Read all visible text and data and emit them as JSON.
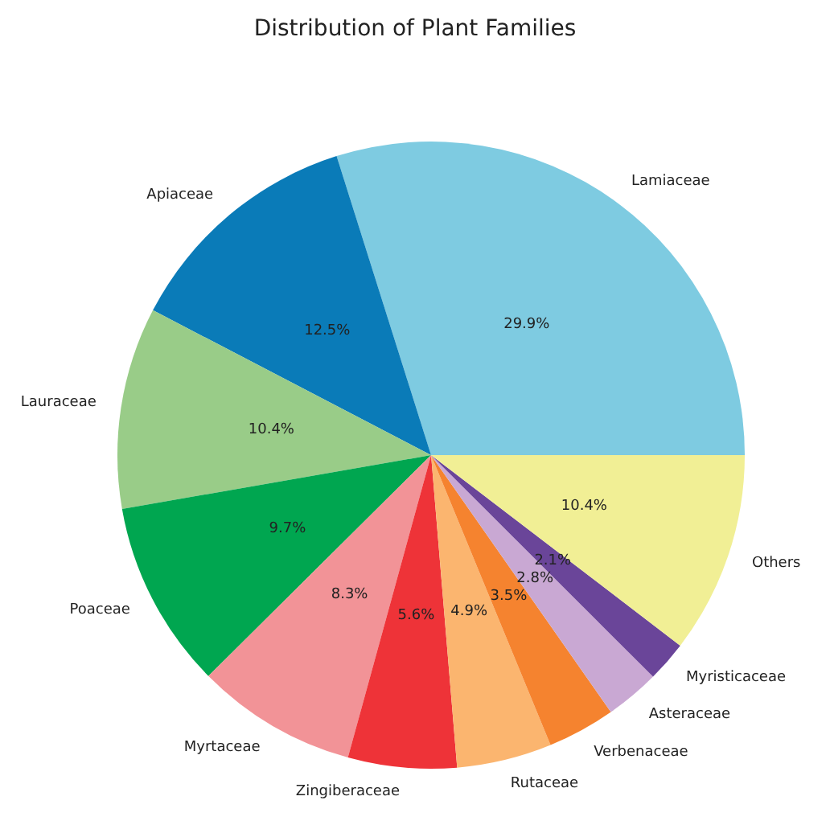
{
  "chart_data": {
    "type": "pie",
    "title": "Distribution of Plant Families",
    "categories": [
      "Lamiaceae",
      "Apiaceae",
      "Lauraceae",
      "Poaceae",
      "Myrtaceae",
      "Zingiberaceae",
      "Rutaceae",
      "Verbenaceae",
      "Asteraceae",
      "Myristicaceae",
      "Others"
    ],
    "values": [
      29.9,
      12.5,
      10.4,
      9.7,
      8.3,
      5.6,
      4.9,
      3.5,
      2.8,
      2.1,
      10.4
    ],
    "colors": [
      "#7ecbe1",
      "#0a7bb8",
      "#99cc88",
      "#00a650",
      "#f29397",
      "#ee3338",
      "#fbb56f",
      "#f5832f",
      "#c9a8d3",
      "#6a4599",
      "#f1ef95"
    ],
    "value_labels": [
      "29.9%",
      "12.5%",
      "10.4%",
      "9.7%",
      "8.3%",
      "5.6%",
      "4.9%",
      "3.5%",
      "2.8%",
      "2.1%",
      "10.4%"
    ]
  }
}
